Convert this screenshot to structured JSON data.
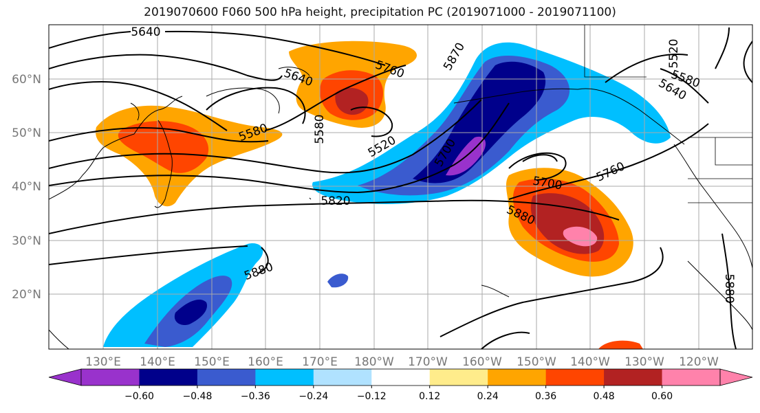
{
  "title": "2019070600 F060 500 hPa height, precipitation PC (2019071000 - 2019071100)",
  "map": {
    "lat_labels": [
      "60°N",
      "50°N",
      "40°N",
      "30°N",
      "20°N"
    ],
    "lon_labels": [
      "130°E",
      "140°E",
      "150°E",
      "160°E",
      "170°E",
      "180°W",
      "170°W",
      "160°W",
      "150°W",
      "140°W",
      "130°W",
      "120°W"
    ],
    "contour_labels": [
      {
        "text": "5640",
        "rot": 0
      },
      {
        "text": "5640",
        "rot": 20
      },
      {
        "text": "5580",
        "rot": -20
      },
      {
        "text": "5580",
        "rot": -90
      },
      {
        "text": "5520",
        "rot": -30
      },
      {
        "text": "5760",
        "rot": 20
      },
      {
        "text": "5870",
        "rot": -60
      },
      {
        "text": "5700",
        "rot": -60
      },
      {
        "text": "5700",
        "rot": 10
      },
      {
        "text": "5760",
        "rot": -25
      },
      {
        "text": "5820",
        "rot": 0
      },
      {
        "text": "5880",
        "rot": 25
      },
      {
        "text": "5880",
        "rot": -20
      },
      {
        "text": "5880",
        "rot": 90
      },
      {
        "text": "5640",
        "rot": 30
      },
      {
        "text": "5580",
        "rot": 20
      },
      {
        "text": "5520",
        "rot": -90
      }
    ]
  },
  "colorbar": {
    "colors": [
      "#9932cc",
      "#00008b",
      "#3a5bcf",
      "#00bfff",
      "#b0e2ff",
      "#ffffff",
      "#ffec8b",
      "#ffa500",
      "#ff4500",
      "#b22222",
      "#ff82ab"
    ],
    "ticks": [
      "−0.60",
      "−0.48",
      "−0.36",
      "−0.24",
      "−0.12",
      "0.12",
      "0.24",
      "0.36",
      "0.48",
      "0.60"
    ]
  }
}
